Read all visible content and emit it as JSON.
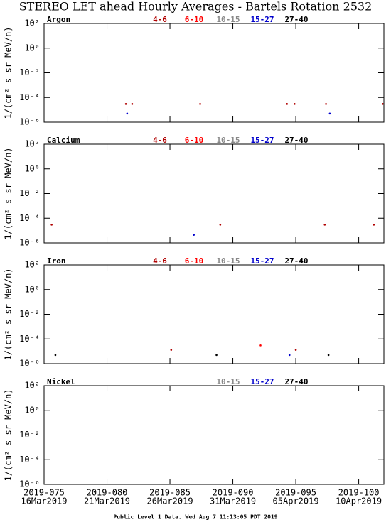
{
  "title": "STEREO LET ahead Hourly Averages - Bartels Rotation 2532",
  "footer": "Public Level 1 Data. Wed Aug  7 11:13:05 PDT 2019",
  "chart_data": [
    {
      "type": "scatter",
      "title": "Argon",
      "y_label": "1/(cm² s sr MeV/n)",
      "log_y": true,
      "xlim": [
        75,
        102
      ],
      "ylim": [
        1e-06,
        100
      ],
      "yticks": [
        {
          "value": 100,
          "label": "10²"
        },
        {
          "value": 1,
          "label": "10⁰"
        },
        {
          "value": 0.01,
          "label": "10⁻²"
        },
        {
          "value": 0.0001,
          "label": "10⁻⁴"
        },
        {
          "value": 1e-06,
          "label": "10⁻⁶"
        }
      ],
      "series": [
        {
          "name": "4-6",
          "color": "#b00000",
          "x": [
            81.5,
            82.0,
            87.4,
            94.3,
            94.9,
            97.4,
            101.9
          ],
          "values": [
            3e-05,
            3e-05,
            3e-05,
            3e-05,
            3e-05,
            3e-05,
            3e-05
          ]
        },
        {
          "name": "6-10",
          "color": "#ff0000",
          "x": [],
          "values": []
        },
        {
          "name": "10-15",
          "color": "#888888",
          "x": [],
          "values": []
        },
        {
          "name": "15-27",
          "color": "#0000cc",
          "x": [
            81.6,
            97.7
          ],
          "values": [
            5e-06,
            5e-06
          ]
        },
        {
          "name": "27-40",
          "color": "#000000",
          "x": [],
          "values": []
        }
      ]
    },
    {
      "type": "scatter",
      "title": "Calcium",
      "y_label": "1/(cm² s sr MeV/n)",
      "log_y": true,
      "xlim": [
        75,
        102
      ],
      "ylim": [
        1e-06,
        100
      ],
      "yticks": [
        {
          "value": 100,
          "label": "10²"
        },
        {
          "value": 1,
          "label": "10⁰"
        },
        {
          "value": 0.01,
          "label": "10⁻²"
        },
        {
          "value": 0.0001,
          "label": "10⁻⁴"
        },
        {
          "value": 1e-06,
          "label": "10⁻⁶"
        }
      ],
      "series": [
        {
          "name": "4-6",
          "color": "#b00000",
          "x": [
            75.6,
            89.0,
            97.3,
            101.2
          ],
          "values": [
            3e-05,
            3e-05,
            3e-05,
            3e-05
          ]
        },
        {
          "name": "6-10",
          "color": "#ff0000",
          "x": [],
          "values": []
        },
        {
          "name": "10-15",
          "color": "#888888",
          "x": [],
          "values": []
        },
        {
          "name": "15-27",
          "color": "#0000cc",
          "x": [
            86.9
          ],
          "values": [
            4.5e-06
          ]
        },
        {
          "name": "27-40",
          "color": "#000000",
          "x": [],
          "values": []
        }
      ]
    },
    {
      "type": "scatter",
      "title": "Iron",
      "y_label": "1/(cm² s sr MeV/n)",
      "log_y": true,
      "xlim": [
        75,
        102
      ],
      "ylim": [
        1e-06,
        100
      ],
      "yticks": [
        {
          "value": 100,
          "label": "10²"
        },
        {
          "value": 1,
          "label": "10⁰"
        },
        {
          "value": 0.01,
          "label": "10⁻²"
        },
        {
          "value": 0.0001,
          "label": "10⁻⁴"
        },
        {
          "value": 1e-06,
          "label": "10⁻⁶"
        }
      ],
      "series": [
        {
          "name": "4-6",
          "color": "#b00000",
          "x": [
            85.1,
            95.0
          ],
          "values": [
            1.3e-05,
            1.3e-05
          ]
        },
        {
          "name": "6-10",
          "color": "#ff0000",
          "x": [
            92.2
          ],
          "values": [
            3e-05
          ]
        },
        {
          "name": "10-15",
          "color": "#888888",
          "x": [],
          "values": []
        },
        {
          "name": "15-27",
          "color": "#0000cc",
          "x": [
            94.5
          ],
          "values": [
            5e-06
          ]
        },
        {
          "name": "27-40",
          "color": "#000000",
          "x": [
            75.9,
            88.7,
            97.6
          ],
          "values": [
            5e-06,
            5e-06,
            5e-06
          ]
        }
      ]
    },
    {
      "type": "scatter",
      "title": "Nickel",
      "y_label": "1/(cm² s sr MeV/n)",
      "log_y": true,
      "xlim": [
        75,
        102
      ],
      "ylim": [
        1e-06,
        100
      ],
      "yticks": [
        {
          "value": 100,
          "label": "10²"
        },
        {
          "value": 1,
          "label": "10⁰"
        },
        {
          "value": 0.01,
          "label": "10⁻²"
        },
        {
          "value": 0.0001,
          "label": "10⁻⁴"
        },
        {
          "value": 1e-06,
          "label": "10⁻⁶"
        }
      ],
      "xticks": [
        {
          "value": 75,
          "label": "2019-075"
        },
        {
          "value": 80,
          "label": "2019-080"
        },
        {
          "value": 85,
          "label": "2019-085"
        },
        {
          "value": 90,
          "label": "2019-090"
        },
        {
          "value": 95,
          "label": "2019-095"
        },
        {
          "value": 100,
          "label": "2019-100"
        }
      ],
      "xtick_dates": [
        "16Mar2019",
        "21Mar2019",
        "26Mar2019",
        "31Mar2019",
        "05Apr2019",
        "10Apr2019"
      ],
      "series": [
        {
          "name": "10-15",
          "color": "#888888",
          "x": [],
          "values": []
        },
        {
          "name": "15-27",
          "color": "#0000cc",
          "x": [],
          "values": []
        },
        {
          "name": "27-40",
          "color": "#000000",
          "x": [],
          "values": []
        }
      ]
    }
  ]
}
